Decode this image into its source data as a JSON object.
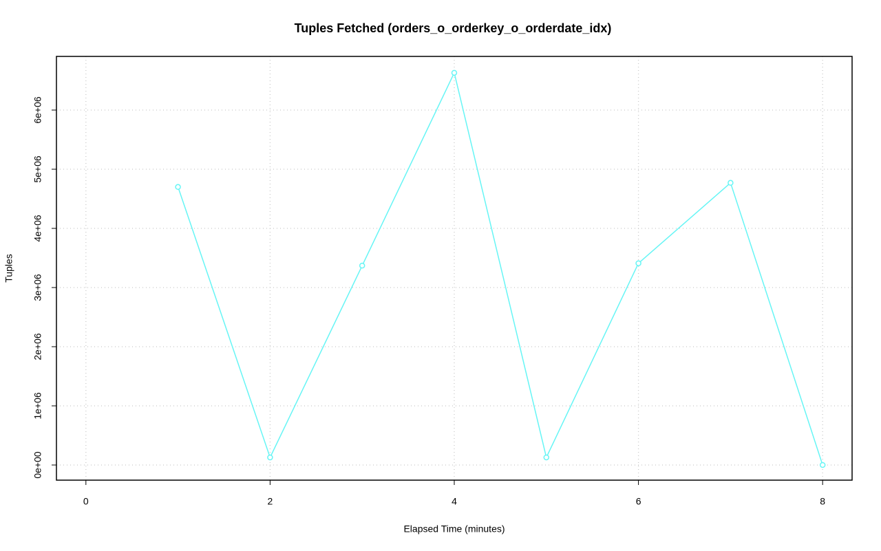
{
  "chart_data": {
    "type": "line",
    "title": "Tuples Fetched (orders_o_orderkey_o_orderdate_idx)",
    "x_label": "Elapsed Time (minutes)",
    "y_label": "Tuples",
    "x": [
      1,
      2,
      3,
      4,
      5,
      6,
      7,
      8
    ],
    "series": [
      {
        "name": "Tuples",
        "color": "#66f5f5",
        "values": [
          4700000,
          128000,
          3370000,
          6630000,
          128000,
          3410000,
          4770000,
          0
        ]
      }
    ],
    "xlim": [
      -0.32,
      8.32
    ],
    "xticks": [
      0,
      2,
      4,
      6,
      8
    ],
    "ylim": [
      -256000,
      6907000
    ],
    "yticks": [
      {
        "value": 0,
        "label": "0e+00"
      },
      {
        "value": 1000000,
        "label": "1e+06"
      },
      {
        "value": 2000000,
        "label": "2e+06"
      },
      {
        "value": 3000000,
        "label": "3e+06"
      },
      {
        "value": 4000000,
        "label": "4e+06"
      },
      {
        "value": 5000000,
        "label": "5e+06"
      },
      {
        "value": 6000000,
        "label": "6e+06"
      }
    ],
    "grid": true
  }
}
